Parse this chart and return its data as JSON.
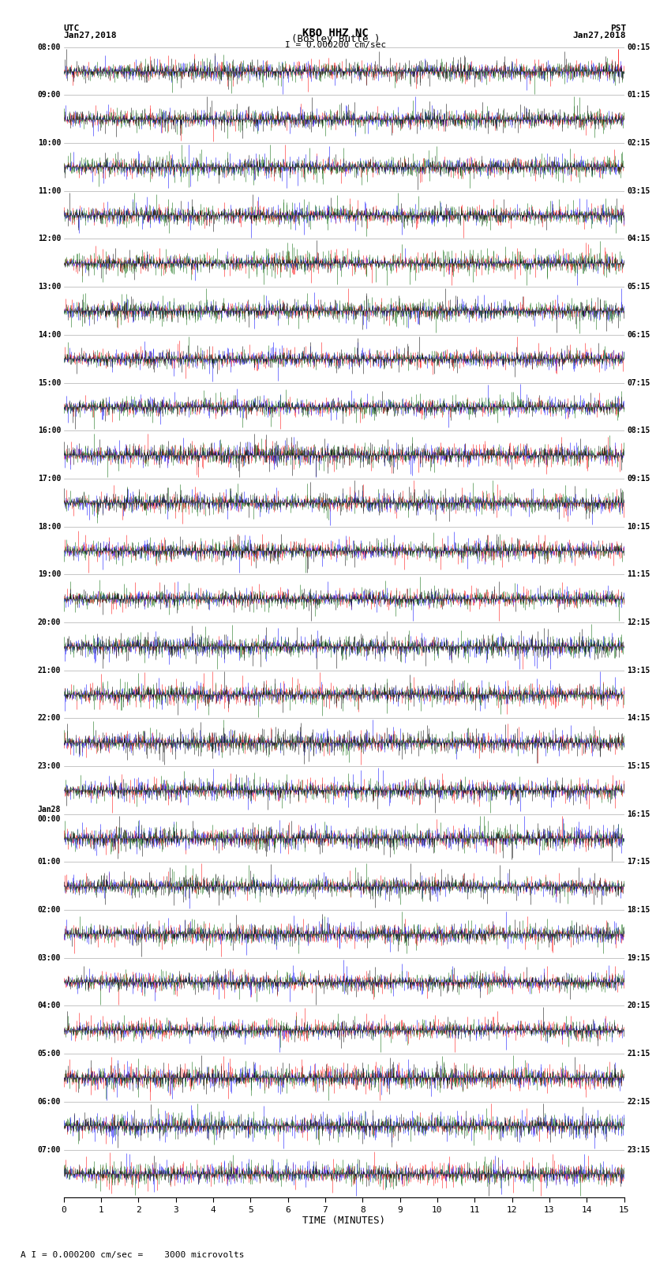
{
  "title_line1": "KBO HHZ NC",
  "title_line2": "(Bosley Butte )",
  "scale_label": "I = 0.000200 cm/sec",
  "footer_label": "A I = 0.000200 cm/sec =    3000 microvolts",
  "left_header": "UTC",
  "left_date": "Jan27,2018",
  "right_header": "PST",
  "right_date": "Jan27,2018",
  "xlabel": "TIME (MINUTES)",
  "left_times": [
    "08:00",
    "09:00",
    "10:00",
    "11:00",
    "12:00",
    "13:00",
    "14:00",
    "15:00",
    "16:00",
    "17:00",
    "18:00",
    "19:00",
    "20:00",
    "21:00",
    "22:00",
    "23:00",
    "Jan28\n00:00",
    "01:00",
    "02:00",
    "03:00",
    "04:00",
    "05:00",
    "06:00",
    "07:00"
  ],
  "right_times": [
    "00:15",
    "01:15",
    "02:15",
    "03:15",
    "04:15",
    "05:15",
    "06:15",
    "07:15",
    "08:15",
    "09:15",
    "10:15",
    "11:15",
    "12:15",
    "13:15",
    "14:15",
    "15:15",
    "16:15",
    "17:15",
    "18:15",
    "19:15",
    "20:15",
    "21:15",
    "22:15",
    "23:15"
  ],
  "n_rows": 24,
  "minutes_per_row": 15,
  "background_color": "#ffffff",
  "colors": [
    "#ff0000",
    "#0000ff",
    "#006400",
    "#000000"
  ],
  "fig_width": 8.5,
  "fig_height": 16.13,
  "dpi": 100
}
